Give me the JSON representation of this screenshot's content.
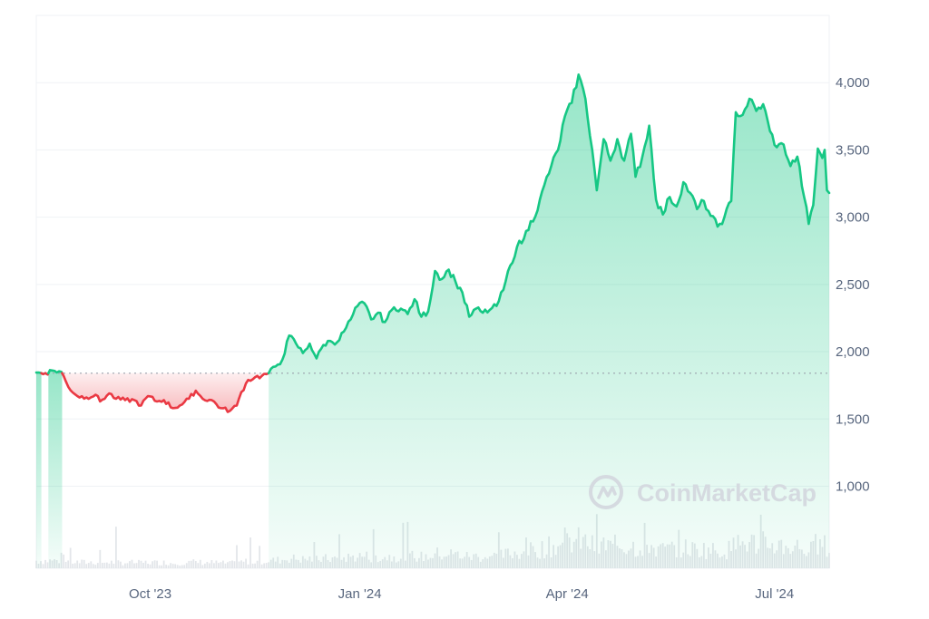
{
  "chart_data": {
    "type": "area",
    "title": "",
    "xlabel": "",
    "ylabel": "",
    "x_ticks": [
      "Oct '23",
      "Jan '24",
      "Apr '24",
      "Jul '24"
    ],
    "x_tick_dates": [
      "2023-10-01",
      "2024-01-01",
      "2024-04-01",
      "2024-07-01"
    ],
    "y_ticks": [
      1000,
      1500,
      2000,
      2500,
      3000,
      3500,
      4000
    ],
    "y_tick_labels": [
      "1,000",
      "1,500",
      "2,000",
      "2,500",
      "3,000",
      "3,500",
      "4,000"
    ],
    "xlim": [
      "2023-08-12",
      "2024-07-25"
    ],
    "ylim": [
      390,
      4500
    ],
    "baseline": 1840,
    "grid": true,
    "colors": {
      "up": "#16c784",
      "down": "#ea3943",
      "volume": "#e3e6ea",
      "grid": "#eff2f5",
      "baseline": "#9aa1ab",
      "tick_text": "#58667e",
      "watermark": "#d5dae0"
    },
    "series": [
      {
        "values": [
          [
            "2023-08-12",
            1845
          ],
          [
            "2023-08-16",
            1840
          ],
          [
            "2023-08-19",
            1860
          ],
          [
            "2023-08-23",
            1850
          ],
          [
            "2023-08-26",
            1740
          ],
          [
            "2023-08-30",
            1670
          ],
          [
            "2023-09-03",
            1660
          ],
          [
            "2023-09-07",
            1680
          ],
          [
            "2023-09-09",
            1630
          ],
          [
            "2023-09-13",
            1690
          ],
          [
            "2023-09-16",
            1650
          ],
          [
            "2023-09-20",
            1640
          ],
          [
            "2023-09-24",
            1640
          ],
          [
            "2023-09-27",
            1600
          ],
          [
            "2023-09-30",
            1670
          ],
          [
            "2023-10-04",
            1630
          ],
          [
            "2023-10-07",
            1640
          ],
          [
            "2023-10-11",
            1580
          ],
          [
            "2023-10-14",
            1600
          ],
          [
            "2023-10-18",
            1650
          ],
          [
            "2023-10-21",
            1710
          ],
          [
            "2023-10-24",
            1650
          ],
          [
            "2023-10-28",
            1640
          ],
          [
            "2023-11-01",
            1580
          ],
          [
            "2023-11-05",
            1560
          ],
          [
            "2023-11-08",
            1600
          ],
          [
            "2023-11-10",
            1700
          ],
          [
            "2023-11-13",
            1790
          ],
          [
            "2023-11-16",
            1810
          ],
          [
            "2023-11-19",
            1820
          ],
          [
            "2023-11-22",
            1840
          ],
          [
            "2023-11-25",
            1890
          ],
          [
            "2023-11-28",
            1940
          ],
          [
            "2023-12-01",
            2120
          ],
          [
            "2023-12-04",
            2060
          ],
          [
            "2023-12-07",
            1990
          ],
          [
            "2023-12-10",
            2060
          ],
          [
            "2023-12-13",
            1950
          ],
          [
            "2023-12-16",
            2050
          ],
          [
            "2023-12-19",
            2080
          ],
          [
            "2023-12-22",
            2070
          ],
          [
            "2023-12-25",
            2150
          ],
          [
            "2023-12-28",
            2240
          ],
          [
            "2023-12-31",
            2340
          ],
          [
            "2024-01-03",
            2360
          ],
          [
            "2024-01-06",
            2240
          ],
          [
            "2024-01-09",
            2290
          ],
          [
            "2024-01-12",
            2220
          ],
          [
            "2024-01-16",
            2330
          ],
          [
            "2024-01-19",
            2320
          ],
          [
            "2024-01-22",
            2280
          ],
          [
            "2024-01-25",
            2390
          ],
          [
            "2024-01-28",
            2260
          ],
          [
            "2024-01-31",
            2300
          ],
          [
            "2024-02-03",
            2600
          ],
          [
            "2024-02-06",
            2540
          ],
          [
            "2024-02-09",
            2610
          ],
          [
            "2024-02-12",
            2520
          ],
          [
            "2024-02-15",
            2440
          ],
          [
            "2024-02-18",
            2260
          ],
          [
            "2024-02-21",
            2320
          ],
          [
            "2024-02-24",
            2290
          ],
          [
            "2024-02-27",
            2310
          ],
          [
            "2024-03-01",
            2340
          ],
          [
            "2024-03-04",
            2460
          ],
          [
            "2024-03-07",
            2640
          ],
          [
            "2024-03-10",
            2780
          ],
          [
            "2024-03-13",
            2840
          ],
          [
            "2024-03-16",
            2970
          ],
          [
            "2024-03-19",
            3050
          ],
          [
            "2024-03-22",
            3240
          ],
          [
            "2024-03-25",
            3380
          ],
          [
            "2024-03-28",
            3500
          ],
          [
            "2024-03-31",
            3750
          ],
          [
            "2024-04-03",
            3850
          ],
          [
            "2024-04-06",
            4060
          ],
          [
            "2024-04-09",
            3880
          ],
          [
            "2024-04-12",
            3500
          ],
          [
            "2024-04-14",
            3200
          ],
          [
            "2024-04-17",
            3580
          ],
          [
            "2024-04-20",
            3420
          ],
          [
            "2024-04-23",
            3580
          ],
          [
            "2024-04-26",
            3420
          ],
          [
            "2024-04-29",
            3620
          ],
          [
            "2024-05-01",
            3300
          ],
          [
            "2024-05-04",
            3450
          ],
          [
            "2024-05-07",
            3680
          ],
          [
            "2024-05-10",
            3130
          ],
          [
            "2024-05-13",
            3020
          ],
          [
            "2024-05-16",
            3150
          ],
          [
            "2024-05-19",
            3080
          ],
          [
            "2024-05-22",
            3260
          ],
          [
            "2024-05-25",
            3180
          ],
          [
            "2024-05-28",
            3060
          ],
          [
            "2024-05-31",
            3120
          ],
          [
            "2024-06-03",
            3010
          ],
          [
            "2024-06-06",
            2930
          ],
          [
            "2024-06-09",
            3000
          ],
          [
            "2024-06-12",
            3120
          ],
          [
            "2024-06-14",
            3780
          ],
          [
            "2024-06-17",
            3760
          ],
          [
            "2024-06-20",
            3880
          ],
          [
            "2024-06-23",
            3790
          ],
          [
            "2024-06-26",
            3840
          ],
          [
            "2024-06-29",
            3640
          ],
          [
            "2024-07-02",
            3520
          ],
          [
            "2024-07-05",
            3540
          ],
          [
            "2024-07-08",
            3380
          ],
          [
            "2024-07-11",
            3450
          ],
          [
            "2024-07-14",
            3150
          ],
          [
            "2024-07-16",
            2950
          ],
          [
            "2024-07-18",
            3090
          ],
          [
            "2024-07-20",
            3510
          ],
          [
            "2024-07-22",
            3440
          ],
          [
            "2024-07-23",
            3500
          ],
          [
            "2024-07-24",
            3200
          ],
          [
            "2024-07-25",
            3180
          ]
        ]
      }
    ],
    "volume_bars": true
  },
  "watermark": {
    "text": "CoinMarketCap",
    "logo_icon": "coinmarketcap-logo-icon"
  }
}
